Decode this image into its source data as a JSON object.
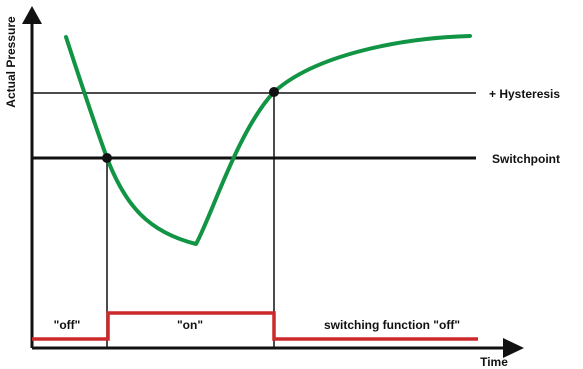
{
  "axes": {
    "y_label": "Actual Pressure",
    "x_label": "Time"
  },
  "levels": {
    "hysteresis_label": "+ Hysteresis",
    "switchpoint_label": "Switchpoint"
  },
  "switching": {
    "off_label": "\"off\"",
    "on_label": "\"on\"",
    "off_function_label": "switching function \"off\""
  },
  "colors": {
    "pressure_curve": "#119444",
    "switching_signal": "#cc2a2a",
    "axes_and_lines": "#111111"
  }
}
